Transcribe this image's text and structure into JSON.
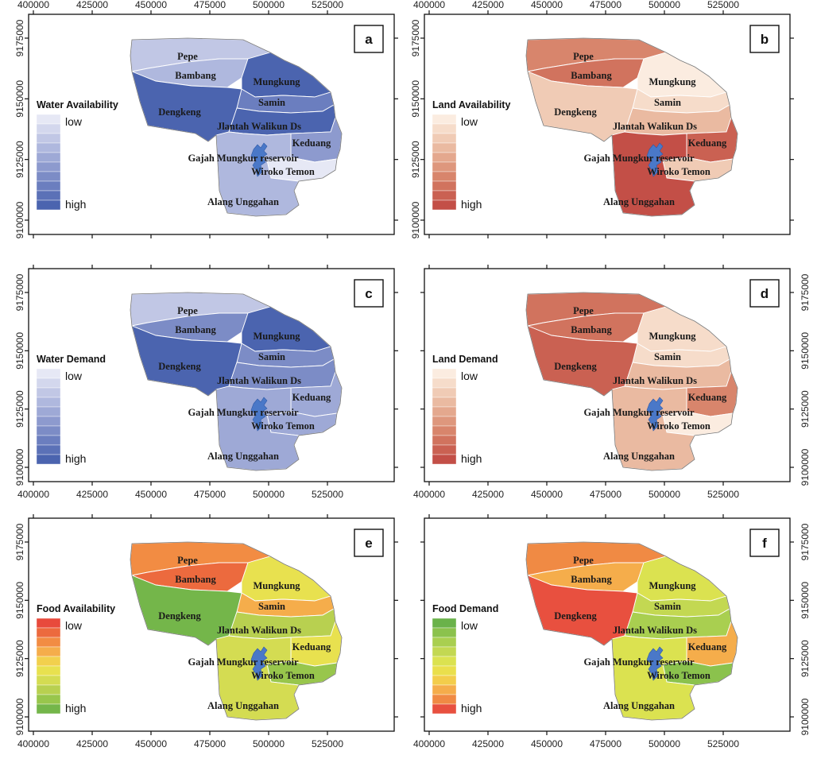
{
  "axes": {
    "x_ticks": [
      "400000",
      "425000",
      "450000",
      "475000",
      "500000",
      "525000"
    ],
    "y_ticks": [
      "9175000",
      "9150000",
      "9125000",
      "9100000"
    ]
  },
  "regions": [
    {
      "id": "pepe",
      "label": "Pepe"
    },
    {
      "id": "bambang",
      "label": "Bambang"
    },
    {
      "id": "mungkung",
      "label": "Mungkung"
    },
    {
      "id": "samin",
      "label": "Samin"
    },
    {
      "id": "dengkeng",
      "label": "Dengkeng"
    },
    {
      "id": "jlantah",
      "label": "Jlantah Walikun Ds"
    },
    {
      "id": "keduang",
      "label": "Keduang"
    },
    {
      "id": "reservoir",
      "label": "Gajah Mungkur reservoir"
    },
    {
      "id": "wiroko",
      "label": "Wiroko Temon"
    },
    {
      "id": "alang",
      "label": "Alang Unggahan"
    }
  ],
  "reservoir_color": "#4a78c8",
  "panels": [
    {
      "id": "a",
      "letter": "a",
      "legend_title": "Water Availability",
      "legend_top": "low",
      "legend_bottom": "high",
      "palette": [
        "#e6e8f5",
        "#d3d7ed",
        "#c1c7e5",
        "#afb8de",
        "#9ea9d6",
        "#8d9ace",
        "#7c8cc6",
        "#6b7ebf",
        "#5b71b7",
        "#4b64af"
      ],
      "levels": {
        "pepe": 2,
        "bambang": 3,
        "mungkung": 9,
        "samin": 7,
        "dengkeng": 9,
        "jlantah": 9,
        "keduang": 5,
        "wiroko": 0,
        "alang": 3
      }
    },
    {
      "id": "b",
      "letter": "b",
      "legend_title": "Land Availability",
      "legend_top": "low",
      "legend_bottom": "high",
      "palette": [
        "#fbece0",
        "#f6dcca",
        "#f0cbb5",
        "#eabaa1",
        "#e4a88e",
        "#de977d",
        "#d8856c",
        "#d1735e",
        "#ca6152",
        "#c34f47"
      ],
      "levels": {
        "pepe": 6,
        "bambang": 7,
        "mungkung": 0,
        "samin": 1,
        "dengkeng": 2,
        "jlantah": 3,
        "keduang": 8,
        "wiroko": 2,
        "alang": 9
      }
    },
    {
      "id": "c",
      "letter": "c",
      "legend_title": "Water Demand",
      "legend_top": "low",
      "legend_bottom": "high",
      "palette": [
        "#e6e8f5",
        "#d3d7ed",
        "#c1c7e5",
        "#afb8de",
        "#9ea9d6",
        "#8d9ace",
        "#7c8cc6",
        "#6b7ebf",
        "#5b71b7",
        "#4b64af"
      ],
      "levels": {
        "pepe": 2,
        "bambang": 6,
        "mungkung": 9,
        "samin": 6,
        "dengkeng": 9,
        "jlantah": 6,
        "keduang": 4,
        "wiroko": 4,
        "alang": 4
      }
    },
    {
      "id": "d",
      "letter": "d",
      "legend_title": "Land Demand",
      "legend_top": "low",
      "legend_bottom": "high",
      "palette": [
        "#fbece0",
        "#f6dcca",
        "#f0cbb5",
        "#eabaa1",
        "#e4a88e",
        "#de977d",
        "#d8856c",
        "#d1735e",
        "#ca6152",
        "#c34f47"
      ],
      "levels": {
        "pepe": 7,
        "bambang": 7,
        "mungkung": 1,
        "samin": 1,
        "dengkeng": 8,
        "jlantah": 3,
        "keduang": 6,
        "wiroko": 0,
        "alang": 3
      }
    },
    {
      "id": "e",
      "letter": "e",
      "legend_title": "Food Availability",
      "legend_top": "low",
      "legend_bottom": "high",
      "palette": [
        "#e84a3c",
        "#ec6a3e",
        "#f28c43",
        "#f5ad4b",
        "#f2d04d",
        "#e8e14f",
        "#d4dc52",
        "#b8d050",
        "#98c64c",
        "#74b64a"
      ],
      "levels": {
        "pepe": 2,
        "bambang": 1,
        "mungkung": 5,
        "samin": 3,
        "dengkeng": 9,
        "jlantah": 7,
        "keduang": 5,
        "wiroko": 8,
        "alang": 6
      }
    },
    {
      "id": "f",
      "letter": "f",
      "legend_title": "Food Demand",
      "legend_top": "low",
      "legend_bottom": "high",
      "palette": [
        "#6ab24a",
        "#8bc24d",
        "#a9cf50",
        "#c3d852",
        "#dbe250",
        "#eadf4c",
        "#f3cd4b",
        "#f5ad4b",
        "#f08a44",
        "#e8503f"
      ],
      "levels": {
        "pepe": 8,
        "bambang": 7,
        "mungkung": 4,
        "samin": 3,
        "dengkeng": 9,
        "jlantah": 2,
        "keduang": 7,
        "wiroko": 1,
        "alang": 4
      }
    }
  ]
}
